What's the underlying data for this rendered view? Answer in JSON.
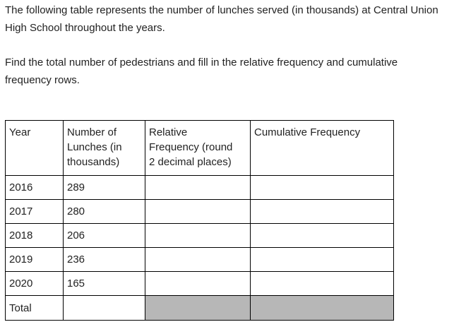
{
  "page": {
    "background": "#ffffff",
    "text_color": "#222222"
  },
  "intro": {
    "paragraph1": "The following table represents the number of lunches served (in thousands) at Central Union High School throughout the years.",
    "paragraph2": "Find the total number of pedestrians and fill in the relative frequency and cumulative frequency rows."
  },
  "table": {
    "headers": [
      "Year",
      "Number of Lunches (in thousands)",
      "Relative Frequency (round 2 decimal places)",
      "Cumulative Frequency"
    ],
    "rows": [
      {
        "year": "2016",
        "lunches": "289",
        "relative_frequency": "",
        "cumulative_frequency": ""
      },
      {
        "year": "2017",
        "lunches": "280",
        "relative_frequency": "",
        "cumulative_frequency": ""
      },
      {
        "year": "2018",
        "lunches": "206",
        "relative_frequency": "",
        "cumulative_frequency": ""
      },
      {
        "year": "2019",
        "lunches": "236",
        "relative_frequency": "",
        "cumulative_frequency": ""
      },
      {
        "year": "2020",
        "lunches": "165",
        "relative_frequency": "",
        "cumulative_frequency": ""
      },
      {
        "year": "Total",
        "lunches": "",
        "relative_frequency": "",
        "cumulative_frequency": ""
      }
    ],
    "colors": {
      "border": "#000000",
      "shaded_cell": "#b7b7b7"
    }
  }
}
